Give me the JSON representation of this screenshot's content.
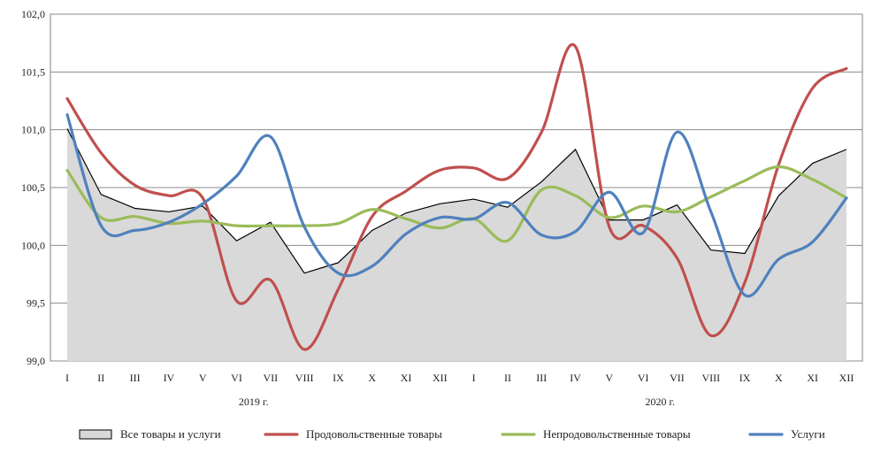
{
  "chart_data": {
    "type": "line",
    "title": "",
    "xlabel": "",
    "ylabel": "",
    "ylim": [
      99.0,
      102.0
    ],
    "y_ticks": [
      "99,0",
      "99,5",
      "100,0",
      "100,5",
      "101,0",
      "101,5",
      "102,0"
    ],
    "grid": "horizontal",
    "legend_position": "bottom",
    "categories": [
      "I",
      "II",
      "III",
      "IV",
      "V",
      "VI",
      "VII",
      "VIII",
      "IX",
      "X",
      "XI",
      "XII",
      "I",
      "II",
      "III",
      "IV",
      "V",
      "VI",
      "VII",
      "VIII",
      "IX",
      "X",
      "XI",
      "XII"
    ],
    "year_labels": [
      {
        "label": "2019 г.",
        "center_index": 5.5
      },
      {
        "label": "2020 г.",
        "center_index": 17.5
      }
    ],
    "series": [
      {
        "name": "Все товары и услуги",
        "style": "area",
        "color": "#000000",
        "fill": "#d9d9d9",
        "values": [
          101.01,
          100.44,
          100.32,
          100.29,
          100.34,
          100.04,
          100.2,
          99.76,
          99.85,
          100.13,
          100.28,
          100.36,
          100.4,
          100.33,
          100.55,
          100.83,
          100.22,
          100.22,
          100.35,
          99.96,
          99.93,
          100.43,
          100.71,
          100.83
        ]
      },
      {
        "name": "Продовольственные товары",
        "style": "line",
        "color": "#c0504d",
        "values": [
          101.27,
          100.8,
          100.52,
          100.43,
          100.41,
          99.52,
          99.7,
          99.1,
          99.62,
          100.25,
          100.47,
          100.65,
          100.67,
          100.58,
          100.98,
          101.72,
          100.16,
          100.17,
          99.89,
          99.22,
          99.68,
          100.7,
          101.36,
          101.53
        ]
      },
      {
        "name": "Непродовольственные товары",
        "style": "line",
        "color": "#9bbb59",
        "values": [
          100.65,
          100.24,
          100.25,
          100.19,
          100.21,
          100.17,
          100.17,
          100.17,
          100.19,
          100.31,
          100.23,
          100.15,
          100.23,
          100.04,
          100.48,
          100.43,
          100.24,
          100.34,
          100.29,
          100.42,
          100.56,
          100.68,
          100.57,
          100.41
        ]
      },
      {
        "name": "Услуги",
        "style": "line",
        "color": "#4f81bd",
        "values": [
          101.13,
          100.17,
          100.13,
          100.2,
          100.36,
          100.6,
          100.94,
          100.16,
          99.76,
          99.82,
          100.1,
          100.24,
          100.23,
          100.37,
          100.09,
          100.12,
          100.46,
          100.11,
          100.98,
          100.29,
          99.57,
          99.88,
          100.03,
          100.41
        ]
      }
    ]
  }
}
